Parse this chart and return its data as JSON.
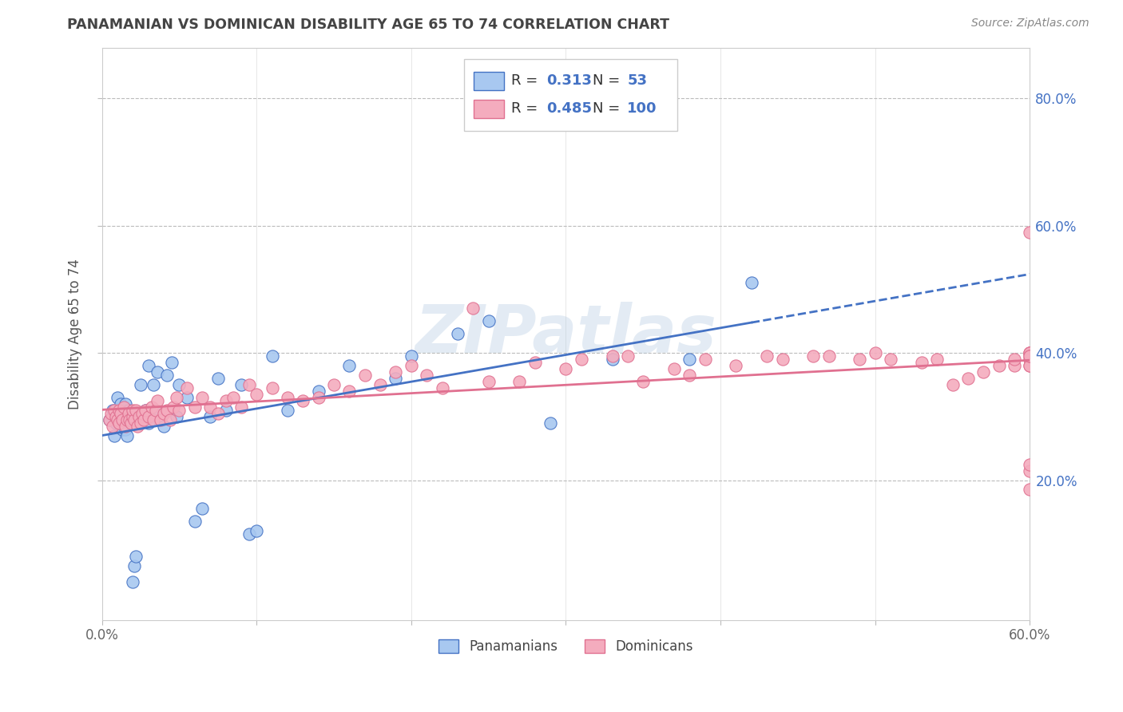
{
  "title": "PANAMANIAN VS DOMINICAN DISABILITY AGE 65 TO 74 CORRELATION CHART",
  "source_text": "Source: ZipAtlas.com",
  "ylabel": "Disability Age 65 to 74",
  "xlim": [
    0.0,
    0.6
  ],
  "ylim": [
    -0.02,
    0.88
  ],
  "xticks": [
    0.0,
    0.1,
    0.2,
    0.3,
    0.4,
    0.5,
    0.6
  ],
  "yticks": [
    0.2,
    0.4,
    0.6,
    0.8
  ],
  "panamanian_color": "#A8C8F0",
  "dominican_color": "#F4ACBE",
  "panamanian_line_color": "#4472C4",
  "dominican_line_color": "#E07090",
  "legend_text_color": "#4472C4",
  "R_pan": 0.313,
  "N_pan": 53,
  "R_dom": 0.485,
  "N_dom": 100,
  "watermark": "ZIPatlas",
  "background_color": "#FFFFFF",
  "grid_color": "#BBBBBB",
  "pan_scatter_x": [
    0.005,
    0.007,
    0.008,
    0.009,
    0.01,
    0.01,
    0.011,
    0.012,
    0.012,
    0.013,
    0.014,
    0.015,
    0.015,
    0.016,
    0.017,
    0.018,
    0.02,
    0.021,
    0.022,
    0.025,
    0.025,
    0.028,
    0.03,
    0.03,
    0.033,
    0.035,
    0.036,
    0.04,
    0.042,
    0.045,
    0.048,
    0.05,
    0.055,
    0.06,
    0.065,
    0.07,
    0.075,
    0.08,
    0.09,
    0.095,
    0.1,
    0.11,
    0.12,
    0.14,
    0.16,
    0.19,
    0.2,
    0.23,
    0.25,
    0.29,
    0.33,
    0.38,
    0.42
  ],
  "pan_scatter_y": [
    0.295,
    0.31,
    0.27,
    0.29,
    0.3,
    0.33,
    0.29,
    0.3,
    0.32,
    0.28,
    0.31,
    0.28,
    0.32,
    0.27,
    0.31,
    0.3,
    0.04,
    0.065,
    0.08,
    0.29,
    0.35,
    0.31,
    0.29,
    0.38,
    0.35,
    0.31,
    0.37,
    0.285,
    0.365,
    0.385,
    0.3,
    0.35,
    0.33,
    0.135,
    0.155,
    0.3,
    0.36,
    0.31,
    0.35,
    0.115,
    0.12,
    0.395,
    0.31,
    0.34,
    0.38,
    0.36,
    0.395,
    0.43,
    0.45,
    0.29,
    0.39,
    0.39,
    0.51
  ],
  "dom_scatter_x": [
    0.005,
    0.006,
    0.007,
    0.008,
    0.009,
    0.01,
    0.011,
    0.011,
    0.012,
    0.013,
    0.014,
    0.015,
    0.016,
    0.017,
    0.018,
    0.019,
    0.02,
    0.02,
    0.021,
    0.022,
    0.023,
    0.024,
    0.025,
    0.026,
    0.027,
    0.028,
    0.03,
    0.032,
    0.033,
    0.035,
    0.036,
    0.038,
    0.04,
    0.042,
    0.044,
    0.046,
    0.048,
    0.05,
    0.055,
    0.06,
    0.065,
    0.07,
    0.075,
    0.08,
    0.085,
    0.09,
    0.095,
    0.1,
    0.11,
    0.12,
    0.13,
    0.14,
    0.15,
    0.16,
    0.17,
    0.18,
    0.19,
    0.2,
    0.21,
    0.22,
    0.24,
    0.25,
    0.27,
    0.28,
    0.3,
    0.31,
    0.33,
    0.34,
    0.35,
    0.37,
    0.38,
    0.39,
    0.41,
    0.43,
    0.44,
    0.46,
    0.47,
    0.49,
    0.5,
    0.51,
    0.53,
    0.54,
    0.55,
    0.56,
    0.57,
    0.58,
    0.59,
    0.59,
    0.6,
    0.6,
    0.6,
    0.6,
    0.6,
    0.6,
    0.6,
    0.6,
    0.6,
    0.6,
    0.6,
    0.6
  ],
  "dom_scatter_y": [
    0.295,
    0.305,
    0.285,
    0.31,
    0.3,
    0.295,
    0.29,
    0.31,
    0.305,
    0.295,
    0.315,
    0.285,
    0.295,
    0.305,
    0.295,
    0.29,
    0.3,
    0.31,
    0.295,
    0.31,
    0.285,
    0.3,
    0.29,
    0.305,
    0.295,
    0.31,
    0.3,
    0.315,
    0.295,
    0.31,
    0.325,
    0.295,
    0.305,
    0.31,
    0.295,
    0.315,
    0.33,
    0.31,
    0.345,
    0.315,
    0.33,
    0.315,
    0.305,
    0.325,
    0.33,
    0.315,
    0.35,
    0.335,
    0.345,
    0.33,
    0.325,
    0.33,
    0.35,
    0.34,
    0.365,
    0.35,
    0.37,
    0.38,
    0.365,
    0.345,
    0.47,
    0.355,
    0.355,
    0.385,
    0.375,
    0.39,
    0.395,
    0.395,
    0.355,
    0.375,
    0.365,
    0.39,
    0.38,
    0.395,
    0.39,
    0.395,
    0.395,
    0.39,
    0.4,
    0.39,
    0.385,
    0.39,
    0.35,
    0.36,
    0.37,
    0.38,
    0.38,
    0.39,
    0.4,
    0.4,
    0.39,
    0.38,
    0.38,
    0.59,
    0.4,
    0.395,
    0.395,
    0.185,
    0.215,
    0.225
  ]
}
